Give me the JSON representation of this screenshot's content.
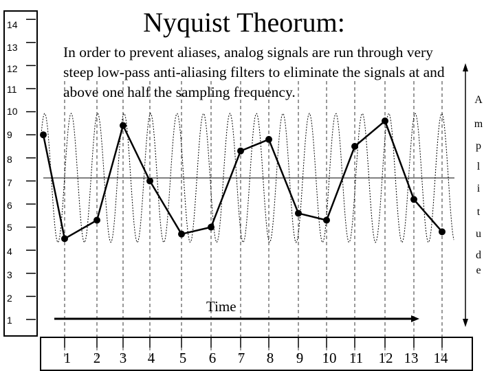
{
  "title": "Nyquist Theorum:",
  "description": "In order to prevent aliases, analog signals are run through very steep low-pass anti-aliasing filters to eliminate the signals at and above one half the sampling frequency.",
  "amplitude_label": "Amplitude",
  "time_label": "Time",
  "y_ticks": [
    "14",
    "13",
    "12",
    "11",
    "10",
    "9",
    "8",
    "7",
    "6",
    "5",
    "4",
    "3",
    "2",
    "1"
  ],
  "x_ticks": [
    "1",
    "2",
    "3",
    "4",
    "5",
    "6",
    "7",
    "8",
    "9",
    "10",
    "11",
    "12",
    "13",
    "14"
  ],
  "samples": [
    9.0,
    4.5,
    5.3,
    9.4,
    7.0,
    4.7,
    5.0,
    8.3,
    8.8,
    5.6,
    5.3,
    8.5,
    9.6,
    6.2,
    4.8
  ],
  "colors": {
    "line": "#000000",
    "wave": "#000000",
    "background": "#ffffff"
  }
}
